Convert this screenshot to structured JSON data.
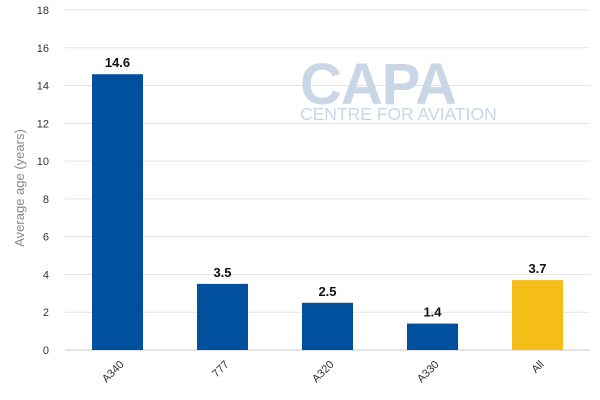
{
  "watermark": {
    "brand": "CAPA",
    "tagline": "CENTRE FOR AVIATION"
  },
  "chart_data": {
    "type": "bar",
    "title": "",
    "xlabel": "",
    "ylabel": "Average age (years)",
    "ylim": [
      0,
      18
    ],
    "yticks": [
      0,
      2,
      4,
      6,
      8,
      10,
      12,
      14,
      16,
      18
    ],
    "grid": true,
    "categories": [
      "A340",
      "777",
      "A320",
      "A330",
      "All"
    ],
    "values": [
      14.6,
      3.5,
      2.5,
      1.4,
      3.7
    ],
    "data_labels": [
      "14.6",
      "3.5",
      "2.5",
      "1.4",
      "3.7"
    ],
    "colors": [
      "#00509e",
      "#00509e",
      "#00509e",
      "#00509e",
      "#f5bd18"
    ]
  }
}
